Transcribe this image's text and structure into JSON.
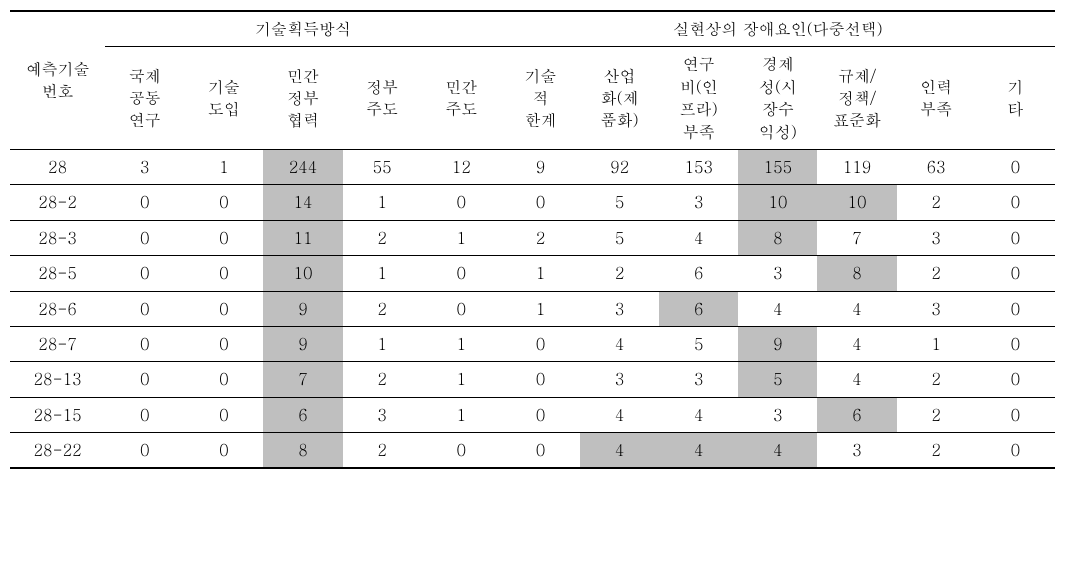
{
  "table": {
    "row_label_header": "예측기술\n번호",
    "group_headers": [
      "기술획득방식",
      "실현상의 장애요인(다중선택)"
    ],
    "sub_headers_a": [
      "국제\n공동\n연구",
      "기술\n도입",
      "민간\n정부\n협력",
      "정부\n주도",
      "민간\n주도"
    ],
    "sub_headers_b": [
      "기술\n적\n한계",
      "산업\n화(제\n품화)",
      "연구\n비(인\n프라)\n부족",
      "경제\n성(시\n장수\n익성)",
      "규제/\n정책/\n표준화",
      "인력\n부족",
      "기\n타"
    ],
    "rows": [
      {
        "label": "28",
        "cells": [
          "3",
          "1",
          "244",
          "55",
          "12",
          "9",
          "92",
          "153",
          "155",
          "119",
          "63",
          "0"
        ],
        "hl": [
          2,
          8
        ]
      },
      {
        "label": "28-2",
        "cells": [
          "0",
          "0",
          "14",
          "1",
          "0",
          "0",
          "5",
          "3",
          "10",
          "10",
          "2",
          "0"
        ],
        "hl": [
          2,
          8,
          9
        ]
      },
      {
        "label": "28-3",
        "cells": [
          "0",
          "0",
          "11",
          "2",
          "1",
          "2",
          "5",
          "4",
          "8",
          "7",
          "3",
          "0"
        ],
        "hl": [
          2,
          8
        ]
      },
      {
        "label": "28-5",
        "cells": [
          "0",
          "0",
          "10",
          "1",
          "0",
          "1",
          "2",
          "6",
          "3",
          "8",
          "2",
          "0"
        ],
        "hl": [
          2,
          9
        ]
      },
      {
        "label": "28-6",
        "cells": [
          "0",
          "0",
          "9",
          "2",
          "0",
          "1",
          "3",
          "6",
          "4",
          "4",
          "3",
          "0"
        ],
        "hl": [
          2,
          7
        ]
      },
      {
        "label": "28-7",
        "cells": [
          "0",
          "0",
          "9",
          "1",
          "1",
          "0",
          "4",
          "5",
          "9",
          "4",
          "1",
          "0"
        ],
        "hl": [
          2,
          8
        ]
      },
      {
        "label": "28-13",
        "cells": [
          "0",
          "0",
          "7",
          "2",
          "1",
          "0",
          "3",
          "3",
          "5",
          "4",
          "2",
          "0"
        ],
        "hl": [
          2,
          8
        ]
      },
      {
        "label": "28-15",
        "cells": [
          "0",
          "0",
          "6",
          "3",
          "1",
          "0",
          "4",
          "4",
          "3",
          "6",
          "2",
          "0"
        ],
        "hl": [
          2,
          9
        ]
      },
      {
        "label": "28-22",
        "cells": [
          "0",
          "0",
          "8",
          "2",
          "0",
          "0",
          "4",
          "4",
          "4",
          "3",
          "2",
          "0"
        ],
        "hl": [
          2,
          6,
          7,
          8
        ]
      }
    ],
    "highlight_color": "#bfbfbf",
    "border_color": "#000000",
    "background_color": "#ffffff",
    "font_size_pt": 12
  }
}
